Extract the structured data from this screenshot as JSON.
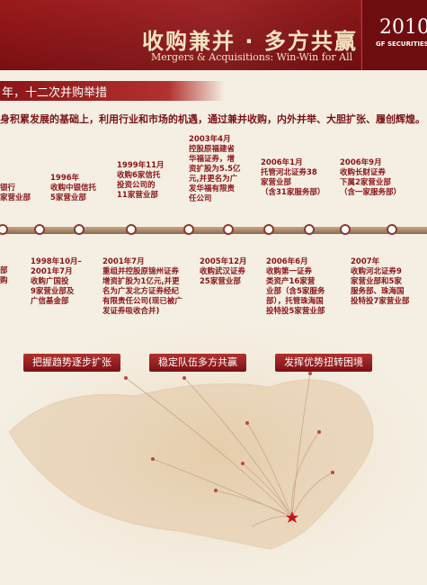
{
  "header": {
    "title": "收购兼并 · 多方共赢",
    "subtitle": "Mergers & Acquisitions: Win-Win for All",
    "year": "2010",
    "company": "GF SECURITIES"
  },
  "section_heading": "年，十二次并购举措",
  "intro": "身积累发展的基础上，利用行业和市场的机遇，通过兼并收购，内外并举、大胆扩张、履创辉煌。",
  "events_top": [
    {
      "lines": [
        "银行",
        "家营业部"
      ]
    },
    {
      "lines": [
        "1996年",
        "收购中银信托",
        "5家营业部"
      ]
    },
    {
      "lines": [
        "1999年11月",
        "收购6家信托",
        "投资公司的",
        "11家营业部"
      ]
    },
    {
      "lines": [
        "2003年4月",
        "控股原福建省",
        "华福证券，增",
        "资扩股为5.5亿",
        "元,并更名为广",
        "发华福有限责",
        "任公司"
      ]
    },
    {
      "lines": [
        "2006年1月",
        "托管河北证券38",
        "家营业部",
        "（含31家服务部）"
      ]
    },
    {
      "lines": [
        "2006年9月",
        "收购长财证券",
        "下属2家营业部",
        "（含一家服务部）"
      ]
    }
  ],
  "events_bottom": [
    {
      "lines": [
        "部",
        "购"
      ]
    },
    {
      "lines": [
        "1998年10月–",
        "2001年7月",
        "收购广国投",
        "9家营业部及",
        "广信基金部"
      ]
    },
    {
      "lines": [
        "2001年7月",
        "重组并控股原锦州证券",
        "增资扩股为1亿元,并更",
        "名为广发北方证券经纪",
        "有限责任公司(现已被广",
        "发证券吸收合并)"
      ]
    },
    {
      "lines": [
        "2005年12月",
        "收购武汉证券",
        "25家营业部"
      ]
    },
    {
      "lines": [
        "2006年6月",
        "收购第一证券",
        "类资产16家营",
        "业部（含5家服务",
        "部），托管珠海国",
        "投特投5家营业部"
      ]
    },
    {
      "lines": [
        "2007年",
        "收购河北证券9",
        "家营业部和5家",
        "服务部、珠海国",
        "投特投7家营业部"
      ]
    }
  ],
  "strategies": [
    "把握趋势逐步扩张",
    "稳定队伍多方共赢",
    "发挥优势扭转困境"
  ],
  "colors": {
    "brand": "#8c1517",
    "accent": "#b2322f",
    "gold": "#f3e3c1"
  }
}
